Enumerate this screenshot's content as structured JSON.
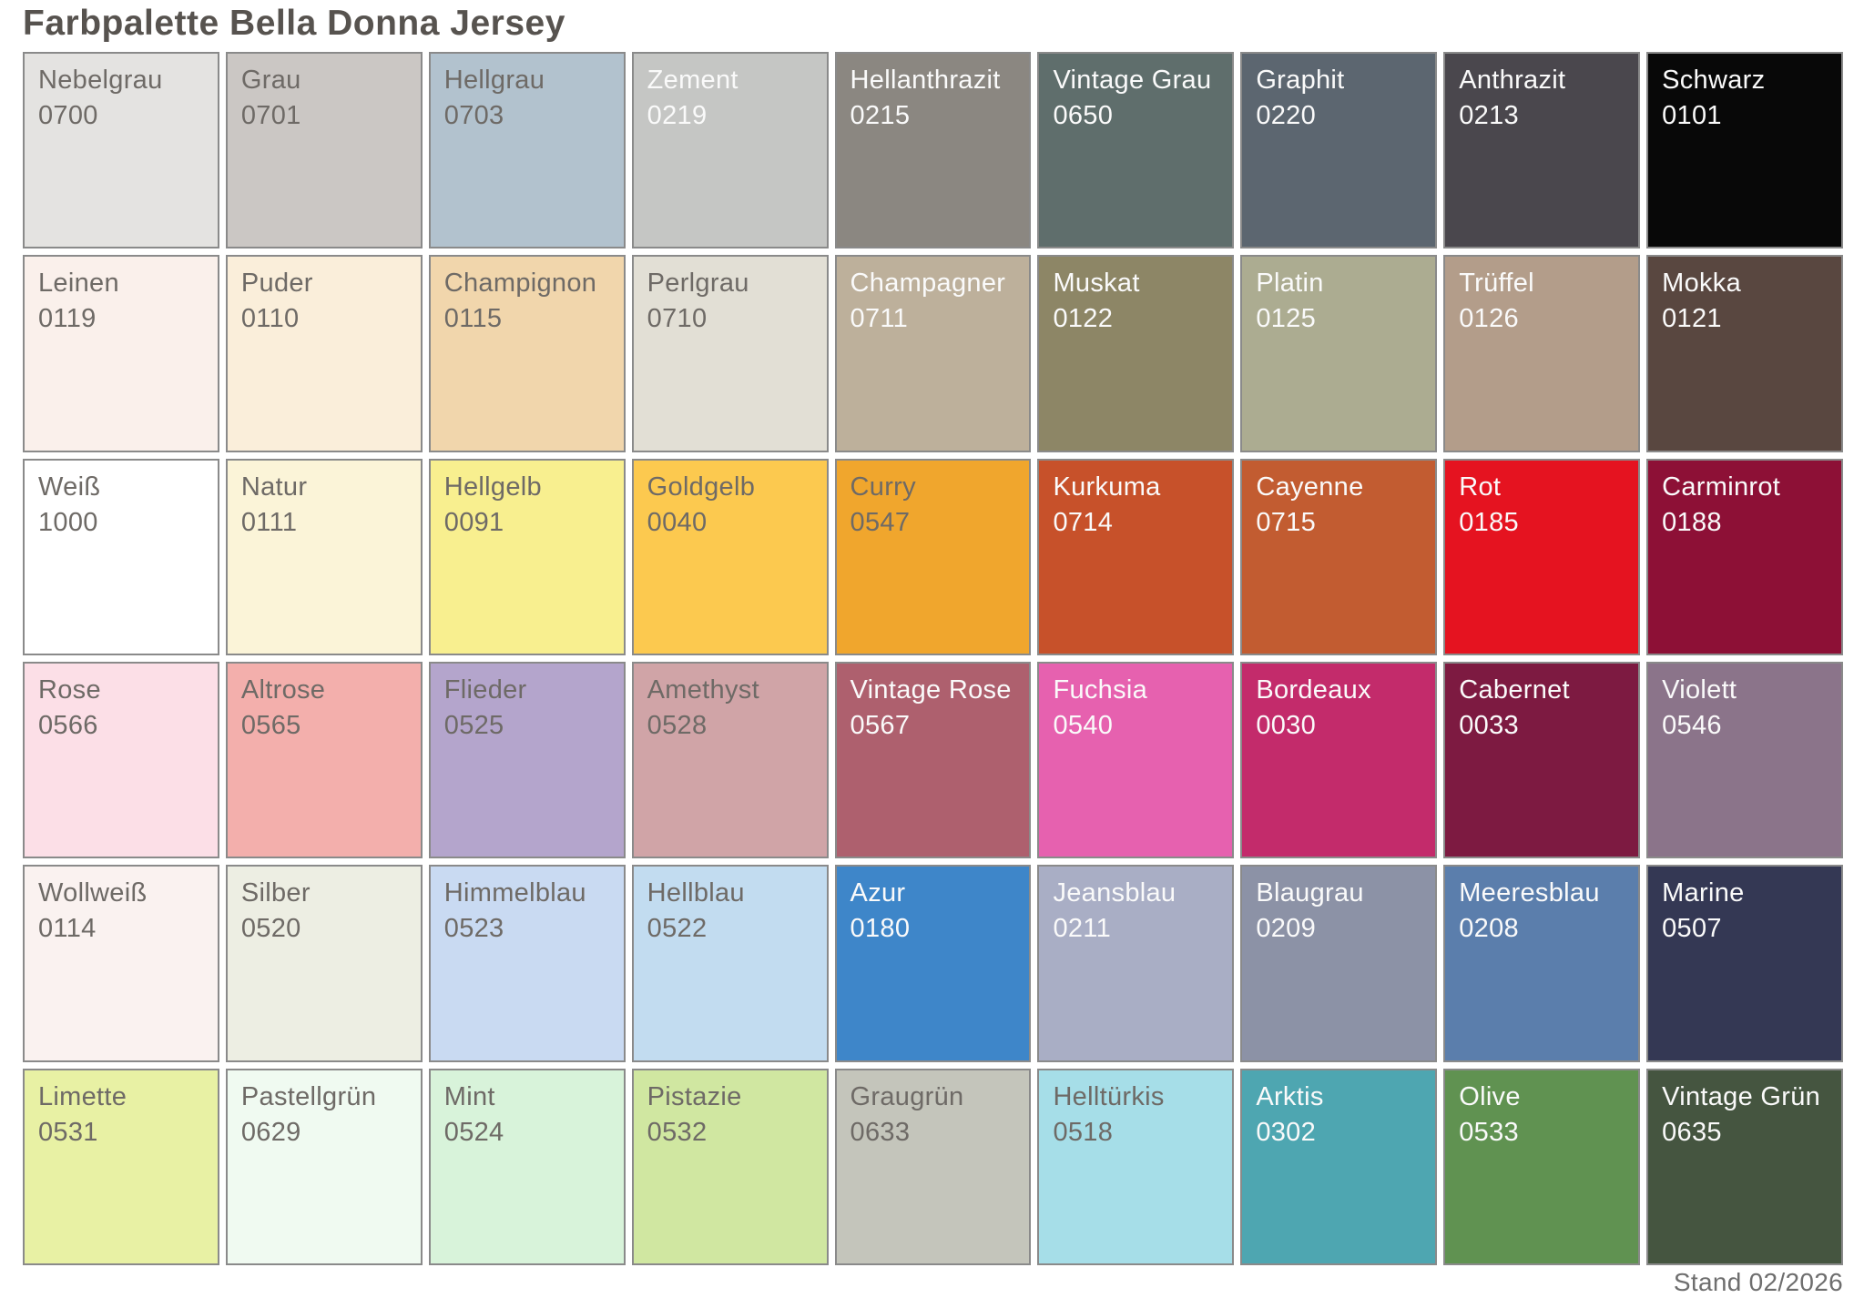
{
  "header": {
    "title": "Farbpalette Bella Donna Jersey"
  },
  "footer": {
    "note": "Stand 02/2026"
  },
  "palette": {
    "columns": 9,
    "rows": 6,
    "border_color": "#8a8a8a",
    "dark_text_color": "#6e6a66",
    "light_text_color": "#fafafa",
    "swatches": [
      {
        "name": "Nebelgrau",
        "code": "0700",
        "bg": "#e4e3e1",
        "text": "dark"
      },
      {
        "name": "Grau",
        "code": "0701",
        "bg": "#cbc7c4",
        "text": "dark"
      },
      {
        "name": "Hellgrau",
        "code": "0703",
        "bg": "#b2c2ce",
        "text": "dark"
      },
      {
        "name": "Zement",
        "code": "0219",
        "bg": "#c5c6c4",
        "text": "light"
      },
      {
        "name": "Hellanthrazit",
        "code": "0215",
        "bg": "#8b8781",
        "text": "light"
      },
      {
        "name": "Vintage Grau",
        "code": "0650",
        "bg": "#5f6e6c",
        "text": "light"
      },
      {
        "name": "Graphit",
        "code": "0220",
        "bg": "#5c6670",
        "text": "light"
      },
      {
        "name": "Anthrazit",
        "code": "0213",
        "bg": "#4a474d",
        "text": "light"
      },
      {
        "name": "Schwarz",
        "code": "0101",
        "bg": "#080808",
        "text": "light"
      },
      {
        "name": "Leinen",
        "code": "0119",
        "bg": "#faf0eb",
        "text": "dark"
      },
      {
        "name": "Puder",
        "code": "0110",
        "bg": "#faeeda",
        "text": "dark"
      },
      {
        "name": "Champignon",
        "code": "0115",
        "bg": "#f1d6ac",
        "text": "dark"
      },
      {
        "name": "Perlgrau",
        "code": "0710",
        "bg": "#e2dfd5",
        "text": "dark"
      },
      {
        "name": "Champagner",
        "code": "0711",
        "bg": "#bdb09b",
        "text": "light"
      },
      {
        "name": "Muskat",
        "code": "0122",
        "bg": "#8d8666",
        "text": "light"
      },
      {
        "name": "Platin",
        "code": "0125",
        "bg": "#acac91",
        "text": "light"
      },
      {
        "name": "Trüffel",
        "code": "0126",
        "bg": "#b39d8a",
        "text": "light"
      },
      {
        "name": "Mokka",
        "code": "0121",
        "bg": "#594740",
        "text": "light"
      },
      {
        "name": "Weiß",
        "code": "1000",
        "bg": "#ffffff",
        "text": "dark"
      },
      {
        "name": "Natur",
        "code": "0111",
        "bg": "#fbf4d8",
        "text": "dark"
      },
      {
        "name": "Hellgelb",
        "code": "0091",
        "bg": "#f8ef8f",
        "text": "dark"
      },
      {
        "name": "Goldgelb",
        "code": "0040",
        "bg": "#fcc94f",
        "text": "dark"
      },
      {
        "name": "Curry",
        "code": "0547",
        "bg": "#f0a62d",
        "text": "dark"
      },
      {
        "name": "Kurkuma",
        "code": "0714",
        "bg": "#c7512a",
        "text": "light"
      },
      {
        "name": "Cayenne",
        "code": "0715",
        "bg": "#c25c31",
        "text": "light"
      },
      {
        "name": "Rot",
        "code": "0185",
        "bg": "#e51320",
        "text": "light"
      },
      {
        "name": "Carminrot",
        "code": "0188",
        "bg": "#8d1036",
        "text": "light"
      },
      {
        "name": "Rose",
        "code": "0566",
        "bg": "#fcdfe7",
        "text": "dark"
      },
      {
        "name": "Altrose",
        "code": "0565",
        "bg": "#f3afac",
        "text": "dark"
      },
      {
        "name": "Flieder",
        "code": "0525",
        "bg": "#b4a5cc",
        "text": "dark"
      },
      {
        "name": "Amethyst",
        "code": "0528",
        "bg": "#d0a4a7",
        "text": "dark"
      },
      {
        "name": "Vintage Rose",
        "code": "0567",
        "bg": "#ae606e",
        "text": "light"
      },
      {
        "name": "Fuchsia",
        "code": "0540",
        "bg": "#e661af",
        "text": "light"
      },
      {
        "name": "Bordeaux",
        "code": "0030",
        "bg": "#c32b6b",
        "text": "light"
      },
      {
        "name": "Cabernet",
        "code": "0033",
        "bg": "#7d1a41",
        "text": "light"
      },
      {
        "name": "Violett",
        "code": "0546",
        "bg": "#8b748a",
        "text": "light"
      },
      {
        "name": "Wollweiß",
        "code": "0114",
        "bg": "#faf2f0",
        "text": "dark"
      },
      {
        "name": "Silber",
        "code": "0520",
        "bg": "#edeee3",
        "text": "dark"
      },
      {
        "name": "Himmelblau",
        "code": "0523",
        "bg": "#c9daf2",
        "text": "dark"
      },
      {
        "name": "Hellblau",
        "code": "0522",
        "bg": "#c2dcf0",
        "text": "dark"
      },
      {
        "name": "Azur",
        "code": "0180",
        "bg": "#3e86c9",
        "text": "light"
      },
      {
        "name": "Jeansblau",
        "code": "0211",
        "bg": "#a9aec5",
        "text": "light"
      },
      {
        "name": "Blaugrau",
        "code": "0209",
        "bg": "#8c92a6",
        "text": "light"
      },
      {
        "name": "Meeresblau",
        "code": "0208",
        "bg": "#5b7eac",
        "text": "light"
      },
      {
        "name": "Marine",
        "code": "0507",
        "bg": "#343854",
        "text": "light"
      },
      {
        "name": "Limette",
        "code": "0531",
        "bg": "#e8f1a4",
        "text": "dark"
      },
      {
        "name": "Pastellgrün",
        "code": "0629",
        "bg": "#f0faf1",
        "text": "dark"
      },
      {
        "name": "Mint",
        "code": "0524",
        "bg": "#d8f3da",
        "text": "dark"
      },
      {
        "name": "Pistazie",
        "code": "0532",
        "bg": "#d0e7a1",
        "text": "dark"
      },
      {
        "name": "Graugrün",
        "code": "0633",
        "bg": "#c4c5bb",
        "text": "dark"
      },
      {
        "name": "Helltürkis",
        "code": "0518",
        "bg": "#a6dee8",
        "text": "dark"
      },
      {
        "name": "Arktis",
        "code": "0302",
        "bg": "#4ea6b1",
        "text": "light"
      },
      {
        "name": "Olive",
        "code": "0533",
        "bg": "#609251",
        "text": "light"
      },
      {
        "name": "Vintage Grün",
        "code": "0635",
        "bg": "#455540",
        "text": "light"
      }
    ]
  }
}
